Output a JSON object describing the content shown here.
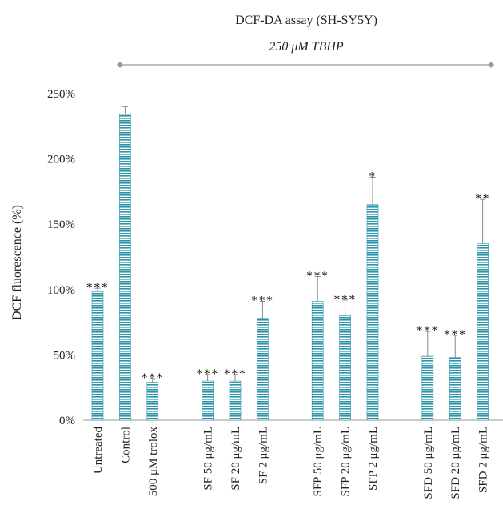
{
  "chart_data": {
    "type": "bar",
    "title": "DCF-DA assay (SH-SY5Y)",
    "subtitle": "250 μM TBHP",
    "ylabel": "DCF fluorescence (%)",
    "xlabel": "",
    "ylim": [
      0,
      250
    ],
    "y_ticks": [
      "0%",
      "50%",
      "100%",
      "150%",
      "200%",
      "250%"
    ],
    "y_tick_values": [
      0,
      50,
      100,
      150,
      200,
      250
    ],
    "categories": [
      "Untreated",
      "Control",
      "500 μM trolox",
      "",
      "SF 50 μg/mL",
      "SF 20 μg/mL",
      "SF 2 μg/mL",
      "",
      "SFP 50 μg/mL",
      "SFP 20 μg/mL",
      "SFP 2 μg/mL",
      "",
      "SFD 50 μg/mL",
      "SFD 20 μg/mL",
      "SFD 2 μg/mL"
    ],
    "values": [
      99,
      234,
      29,
      null,
      30,
      30,
      78,
      null,
      91,
      80,
      165,
      null,
      49,
      48,
      135
    ],
    "errors": [
      2,
      6,
      3,
      null,
      5,
      5,
      13,
      null,
      19,
      12,
      21,
      null,
      19,
      17,
      34
    ],
    "significance": [
      "***",
      "",
      "***",
      "",
      "***",
      "***",
      "***",
      "",
      "***",
      "***",
      "*",
      "",
      "***",
      "***",
      "**"
    ],
    "bar_color": "#2a95aa",
    "grid": false,
    "legend": "none"
  }
}
